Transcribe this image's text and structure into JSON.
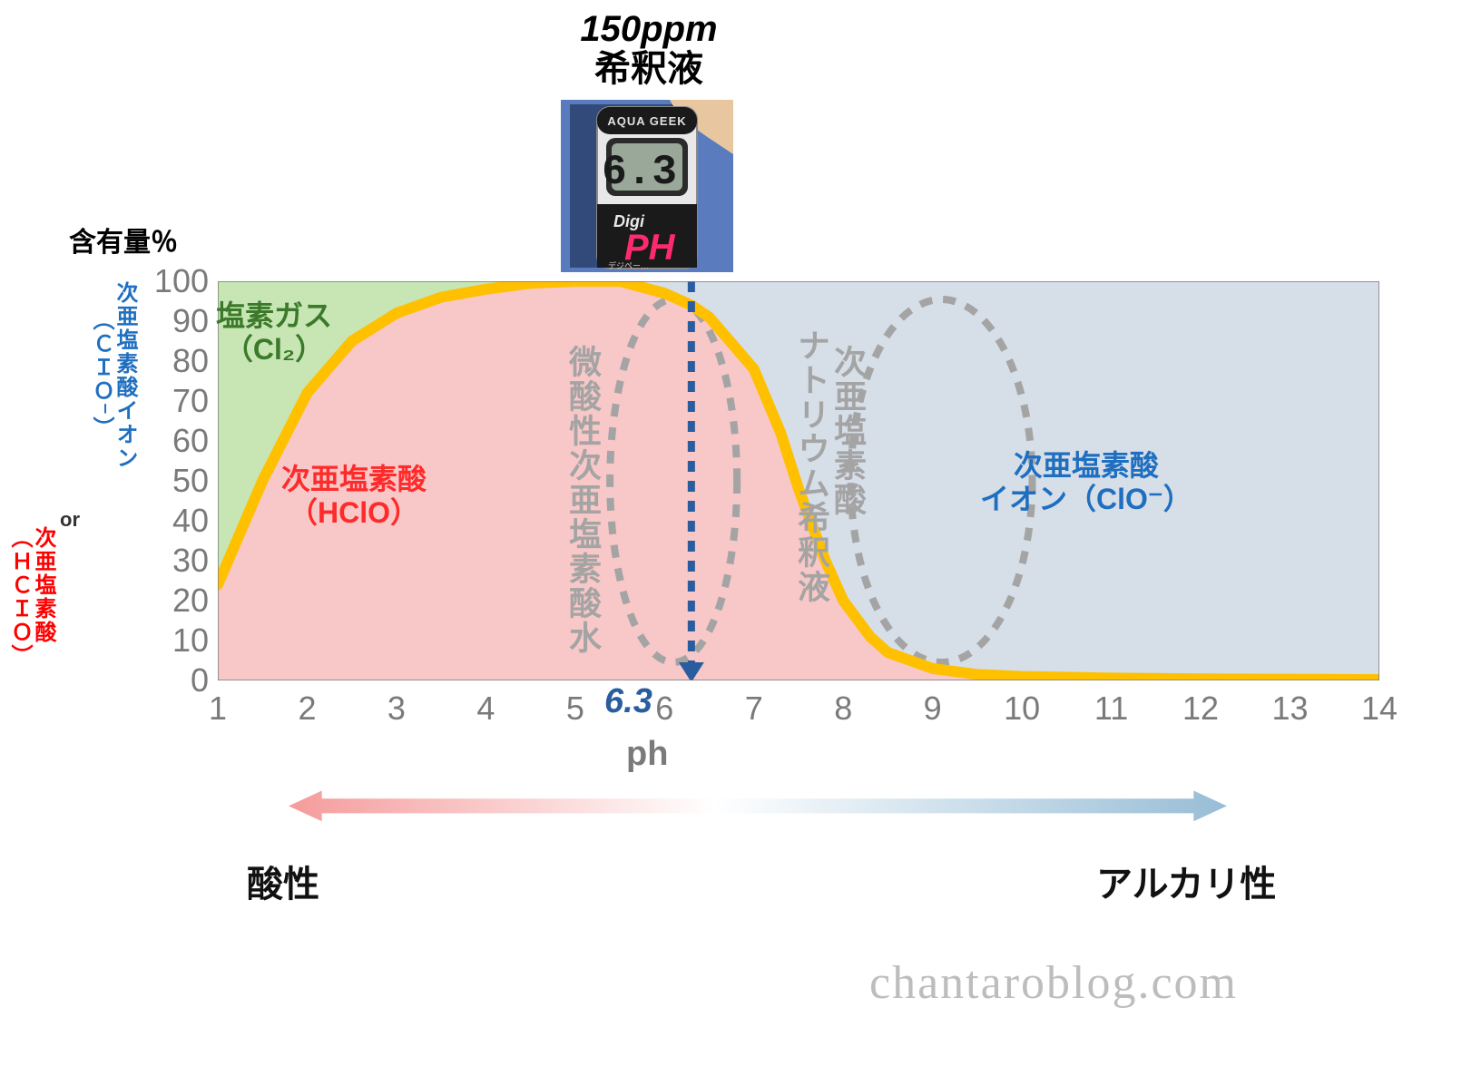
{
  "top": {
    "ppm_label": "150ppm",
    "dilution_label": "希釈液"
  },
  "meter": {
    "brand_top": "AQUA  GEEK",
    "display_value": "6.3",
    "brand_mid": "Digi",
    "brand_ph": "PH",
    "brand_sub": "デジペー…"
  },
  "yaxis": {
    "title": "含有量％",
    "red_vertical_1": "次亜塩素酸",
    "red_vertical_2": "（ＨＣＩＯ）",
    "or_label": "or",
    "blue_vertical_1": "次亜塩素酸イオン",
    "blue_vertical_2": "（ＣＩＯ⁻）",
    "ticks": [
      0,
      10,
      20,
      30,
      40,
      50,
      60,
      70,
      80,
      90,
      100
    ]
  },
  "xaxis": {
    "title": "ph",
    "ticks": [
      1,
      2,
      3,
      4,
      5,
      6,
      7,
      8,
      9,
      10,
      11,
      12,
      13,
      14
    ],
    "min": 1,
    "max": 14
  },
  "chart": {
    "type": "area_line",
    "bg_color": "#d6dee8",
    "line_color": "#ffc000",
    "line_width": 12,
    "green_fill": "#c7e6b4",
    "pink_fill": "#f8c7c7",
    "green_region_poly": [
      [
        1,
        0
      ],
      [
        1,
        100
      ],
      [
        1.05,
        26
      ],
      [
        1.5,
        50
      ],
      [
        2,
        72
      ],
      [
        2.5,
        85
      ],
      [
        3,
        92
      ],
      [
        3.5,
        96
      ],
      [
        4,
        98
      ],
      [
        4.5,
        99.5
      ],
      [
        5,
        100
      ]
    ],
    "hclo_curve": [
      [
        1,
        24
      ],
      [
        1.5,
        50
      ],
      [
        2,
        72
      ],
      [
        2.5,
        85
      ],
      [
        3,
        92
      ],
      [
        3.5,
        96
      ],
      [
        4,
        98
      ],
      [
        4.5,
        99.5
      ],
      [
        5,
        100
      ],
      [
        5.5,
        100
      ],
      [
        6,
        97
      ],
      [
        6.2,
        95
      ],
      [
        6.3,
        94
      ],
      [
        6.5,
        91
      ],
      [
        7,
        78
      ],
      [
        7.3,
        62
      ],
      [
        7.5,
        48
      ],
      [
        7.8,
        30
      ],
      [
        8,
        20
      ],
      [
        8.3,
        11
      ],
      [
        8.5,
        7
      ],
      [
        9,
        3
      ],
      [
        9.5,
        1.5
      ],
      [
        10,
        1
      ],
      [
        11,
        0.6
      ],
      [
        12,
        0.4
      ],
      [
        13,
        0.3
      ],
      [
        14,
        0.2
      ]
    ],
    "indicator_ph": 6.3,
    "indicator_value_label": "6.3",
    "indicator_color": "#2a5d9f"
  },
  "region_labels": {
    "cl2": {
      "line1": "塩素ガス",
      "line2": "（Cl₂）",
      "color": "#3b7a2a",
      "fontsize": 32
    },
    "hclo": {
      "line1": "次亜塩素酸",
      "line2": "（HClO）",
      "color": "#ff2a2a",
      "fontsize": 32
    },
    "clo": {
      "line1": "次亜塩素酸",
      "line2": "イオン（ClO⁻）",
      "color": "#1f6fc0",
      "fontsize": 32
    },
    "annot_left": "微酸性次亜塩素酸水",
    "annot_right_a": "次亜塩素酸",
    "annot_right_b": "ナトリウム希釈液"
  },
  "ph_bar": {
    "acid_label": "酸性",
    "alkali_label": "アルカリ性",
    "acid_color": "#f59b9b",
    "alkali_color": "#97bdd6"
  },
  "watermark": "chantaroblog.com"
}
